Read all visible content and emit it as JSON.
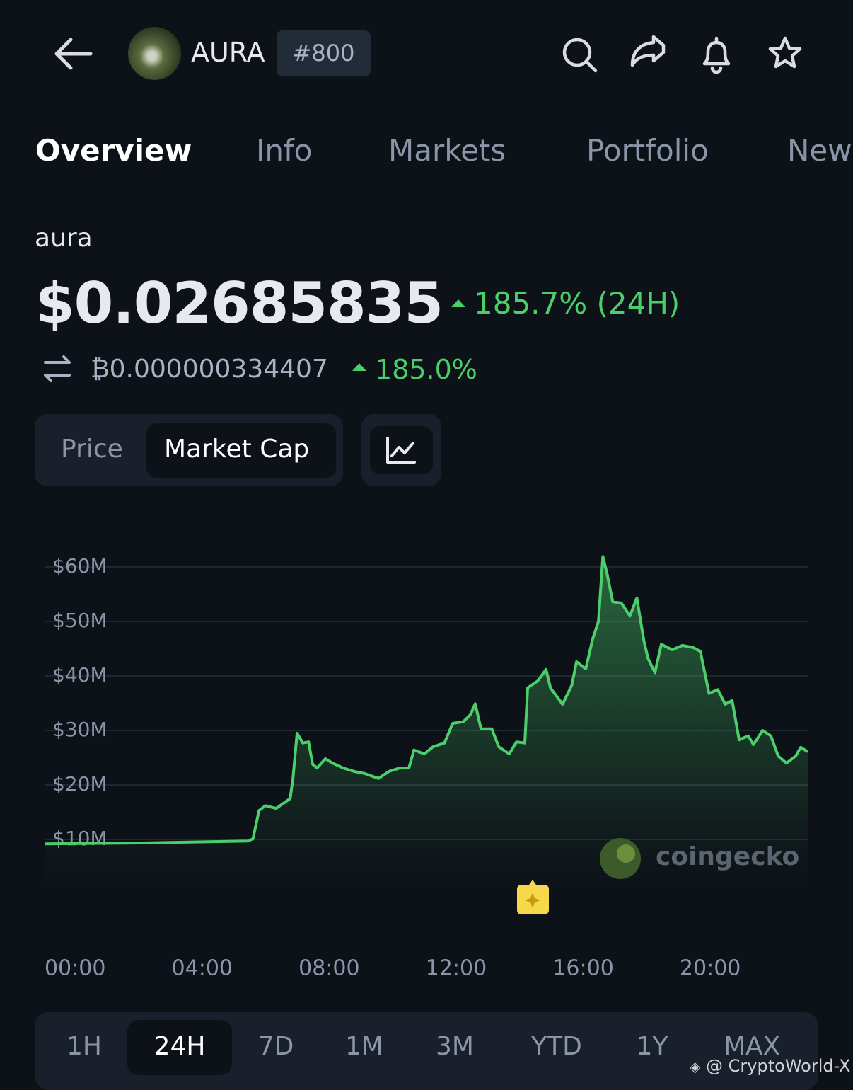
{
  "header": {
    "title": "AURA",
    "rank": "#800"
  },
  "tabs": [
    "Overview",
    "Info",
    "Markets",
    "Portfolio",
    "New"
  ],
  "coin": {
    "name": "aura",
    "price": "$0.02685835",
    "change": "185.7% (24H)",
    "btc_price": "₿0.000000334407",
    "btc_change": "185.0%"
  },
  "toggle": [
    "Price",
    "Market Cap"
  ],
  "chart_data": {
    "type": "line",
    "color": "#4ccf6b",
    "grid": true,
    "x": [
      -0.94,
      2.09,
      5.43,
      5.6,
      5.79,
      5.99,
      6.33,
      6.77,
      6.86,
      6.99,
      7.17,
      7.35,
      7.48,
      7.62,
      7.88,
      8.11,
      8.44,
      8.78,
      9.11,
      9.55,
      9.89,
      10.22,
      10.51,
      10.67,
      11.0,
      11.27,
      11.63,
      11.89,
      12.22,
      12.45,
      12.6,
      12.78,
      13.12,
      13.34,
      13.67,
      13.9,
      14.16,
      14.25,
      14.57,
      14.83,
      14.97,
      15.35,
      15.64,
      15.79,
      16.08,
      16.3,
      16.48,
      16.62,
      16.75,
      16.93,
      17.2,
      17.47,
      17.69,
      17.91,
      18.04,
      18.26,
      18.46,
      18.8,
      19.13,
      19.47,
      19.69,
      19.96,
      20.24,
      20.47,
      20.69,
      20.91,
      21.2,
      21.36,
      21.65,
      21.91,
      22.14,
      22.4,
      22.69,
      22.85,
      23.07
    ],
    "values": [
      9.2,
      9.35,
      9.7,
      10.1,
      15.3,
      16.2,
      15.7,
      17.5,
      21.2,
      29.5,
      27.7,
      27.9,
      23.8,
      23.1,
      24.8,
      24.0,
      23.1,
      22.5,
      22.1,
      21.2,
      22.5,
      23.1,
      23.1,
      26.4,
      25.7,
      27.0,
      27.7,
      31.3,
      31.6,
      32.9,
      34.9,
      30.3,
      30.3,
      27.0,
      25.7,
      27.9,
      27.7,
      37.8,
      39.1,
      41.2,
      37.8,
      34.8,
      38.3,
      42.6,
      41.3,
      46.8,
      50.0,
      61.9,
      58.8,
      53.6,
      53.4,
      51.0,
      54.3,
      46.5,
      43.2,
      40.6,
      45.8,
      44.8,
      45.6,
      45.2,
      44.5,
      36.8,
      37.5,
      34.8,
      35.5,
      28.3,
      29.0,
      27.4,
      30.0,
      29.0,
      25.3,
      24.0,
      25.3,
      26.9,
      26.1
    ],
    "xlim": [
      -0.94,
      23.07
    ],
    "xticks": [
      {
        "value": 0,
        "label": "00:00"
      },
      {
        "value": 4,
        "label": "04:00"
      },
      {
        "value": 8,
        "label": "08:00"
      },
      {
        "value": 12,
        "label": "12:00"
      },
      {
        "value": 16,
        "label": "16:00"
      },
      {
        "value": 20,
        "label": "20:00"
      }
    ],
    "ylim": [
      0,
      62
    ],
    "yticks": [
      {
        "value": 10,
        "label": "$10M"
      },
      {
        "value": 20,
        "label": "$20M"
      },
      {
        "value": 30,
        "label": "$30M"
      },
      {
        "value": 40,
        "label": "$40M"
      },
      {
        "value": 50,
        "label": "$50M"
      },
      {
        "value": 60,
        "label": "$60M"
      }
    ]
  },
  "watermark": "coingecko",
  "ranges": [
    "1H",
    "24H",
    "7D",
    "1M",
    "3M",
    "YTD",
    "1Y",
    "MAX"
  ],
  "credit": "@ CryptoWorld-X"
}
